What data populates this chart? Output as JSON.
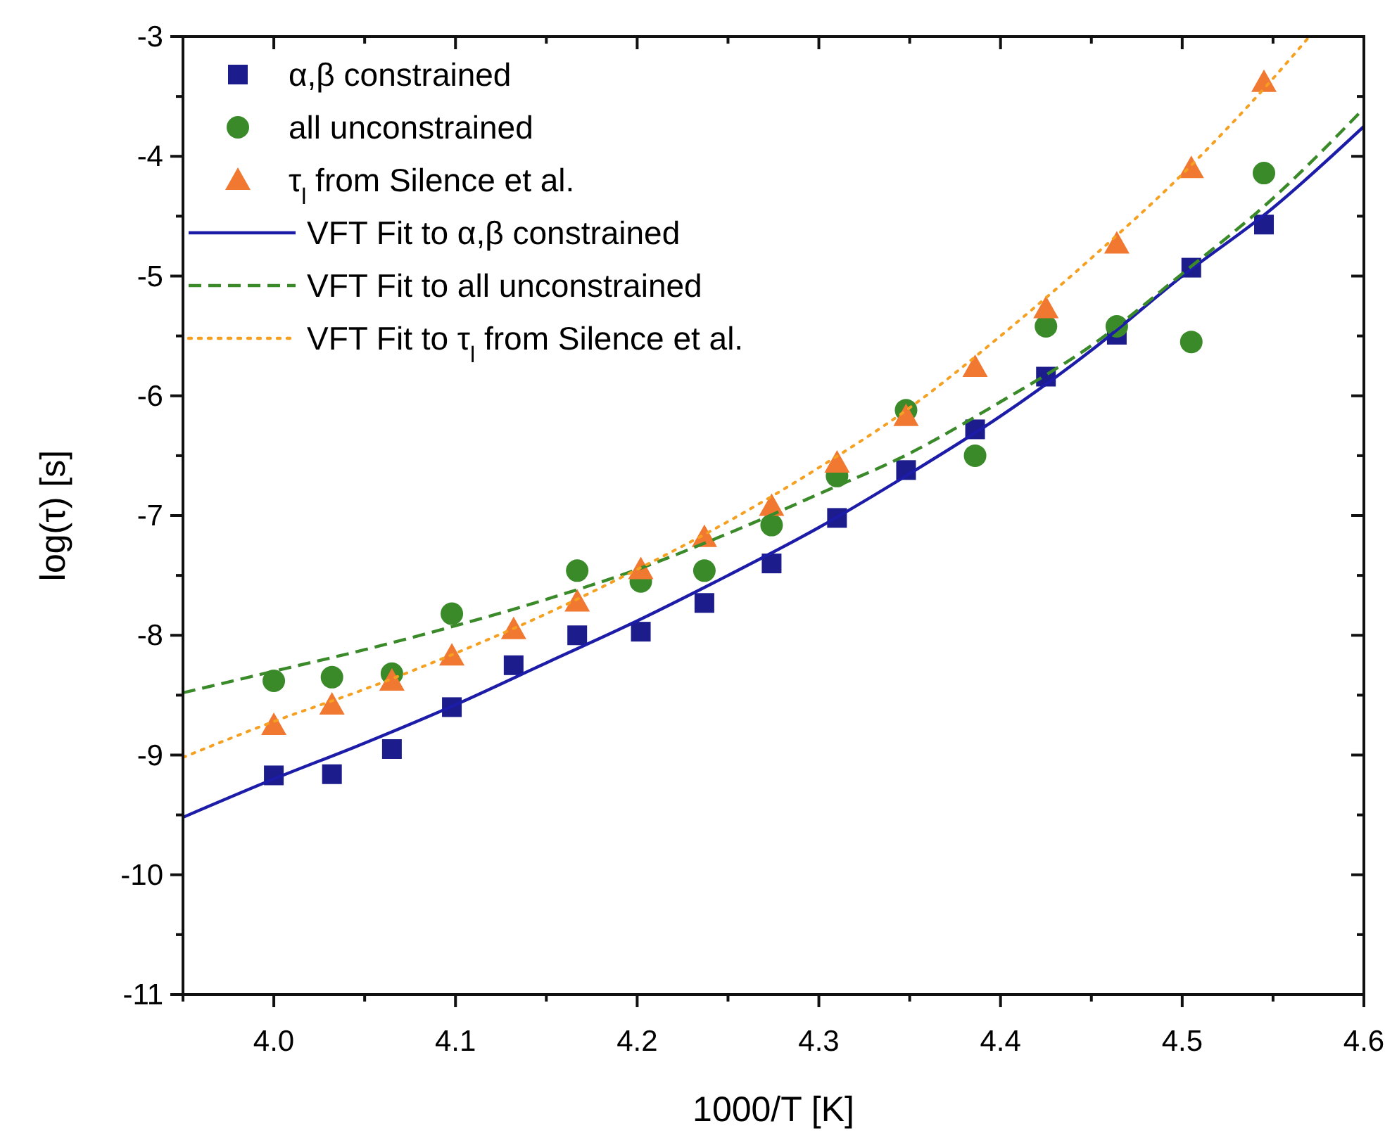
{
  "chart_data": {
    "type": "scatter",
    "xlabel": "1000/T [K]",
    "ylabel": "log(τ) [s]",
    "xlim": [
      3.95,
      4.6
    ],
    "xticks": [
      {
        "value": 4.0,
        "label": "4.0"
      },
      4.1,
      4.2,
      4.3,
      4.4,
      4.5,
      4.6
    ],
    "ylim": [
      -11,
      -3
    ],
    "yticks": [
      -11,
      -10,
      -9,
      -8,
      -7,
      -6,
      -5,
      -4,
      -3
    ],
    "grid": false,
    "legend": "top left",
    "series": [
      {
        "name": "α,β constrained",
        "marker": "square",
        "color": "#1c1c8c",
        "x": [
          4.0,
          4.032,
          4.065,
          4.098,
          4.132,
          4.167,
          4.202,
          4.237,
          4.274,
          4.31,
          4.348,
          4.386,
          4.425,
          4.464,
          4.505,
          4.545
        ],
        "values": [
          -9.17,
          -9.16,
          -8.95,
          -8.6,
          -8.25,
          -8.0,
          -7.97,
          -7.73,
          -7.4,
          -7.02,
          -6.62,
          -6.28,
          -5.84,
          -5.49,
          -4.93,
          -4.57
        ]
      },
      {
        "name": "all unconstrained",
        "marker": "circle",
        "color": "#3a8a2a",
        "x": [
          4.0,
          4.032,
          4.065,
          4.098,
          4.167,
          4.202,
          4.237,
          4.274,
          4.31,
          4.348,
          4.386,
          4.425,
          4.464,
          4.505,
          4.545
        ],
        "values": [
          -8.38,
          -8.35,
          -8.32,
          -7.82,
          -7.46,
          -7.55,
          -7.46,
          -7.08,
          -6.67,
          -6.12,
          -6.5,
          -5.42,
          -5.42,
          -5.55,
          -4.14
        ]
      },
      {
        "name": "τ$_{l}$ from Silence et al.",
        "marker": "triangle",
        "color": "#f07830",
        "x": [
          4.0,
          4.032,
          4.065,
          4.098,
          4.132,
          4.167,
          4.202,
          4.237,
          4.274,
          4.31,
          4.348,
          4.386,
          4.425,
          4.464,
          4.505,
          4.545
        ],
        "values": [
          -8.75,
          -8.58,
          -8.38,
          -8.17,
          -7.95,
          -7.72,
          -7.45,
          -7.18,
          -6.92,
          -6.56,
          -6.17,
          -5.76,
          -5.27,
          -4.73,
          -4.1,
          -3.38
        ]
      },
      {
        "name": "VFT Fit to α,β constrained",
        "type": "line",
        "line_style": "solid",
        "color": "#1c1ca8",
        "x": [
          3.95,
          4.0,
          4.05,
          4.1,
          4.15,
          4.2,
          4.25,
          4.3,
          4.35,
          4.4,
          4.45,
          4.5,
          4.55,
          4.6
        ],
        "values": [
          -9.52,
          -9.2,
          -8.9,
          -8.58,
          -8.23,
          -7.88,
          -7.5,
          -7.1,
          -6.65,
          -6.17,
          -5.62,
          -5.0,
          -4.43,
          -3.75
        ]
      },
      {
        "name": "VFT Fit to all unconstrained",
        "type": "line",
        "line_style": "dashed",
        "color": "#3a8a2a",
        "x": [
          3.95,
          4.0,
          4.05,
          4.1,
          4.15,
          4.2,
          4.25,
          4.3,
          4.35,
          4.4,
          4.45,
          4.5,
          4.55,
          4.6
        ],
        "values": [
          -8.48,
          -8.3,
          -8.12,
          -7.92,
          -7.7,
          -7.45,
          -7.15,
          -6.82,
          -6.48,
          -6.05,
          -5.58,
          -4.98,
          -4.35,
          -3.6
        ]
      },
      {
        "name": "VFT Fit to τ$_{l}$ from Silence et al.",
        "type": "line",
        "line_style": "dotted",
        "color": "#f5a020",
        "x": [
          3.95,
          4.0,
          4.05,
          4.1,
          4.15,
          4.2,
          4.25,
          4.3,
          4.35,
          4.4,
          4.45,
          4.5,
          4.55,
          4.57
        ],
        "values": [
          -9.02,
          -8.72,
          -8.45,
          -8.15,
          -7.82,
          -7.45,
          -7.05,
          -6.6,
          -6.1,
          -5.5,
          -4.85,
          -4.15,
          -3.35,
          -3.0
        ]
      }
    ]
  }
}
